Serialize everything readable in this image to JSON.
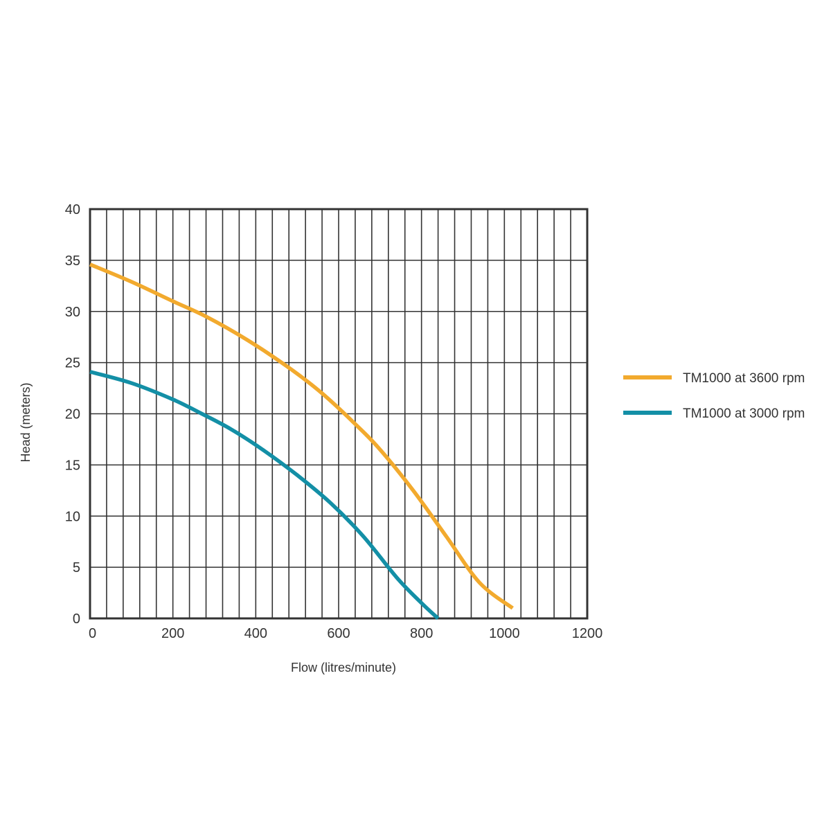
{
  "chart_data": {
    "type": "line",
    "title": "",
    "xlabel": "Flow (litres/minute)",
    "ylabel": "Head (meters)",
    "xlim": [
      0,
      1200
    ],
    "ylim": [
      0,
      40
    ],
    "x_ticks": [
      0,
      200,
      400,
      600,
      800,
      1000,
      1200
    ],
    "x_tick_labels": [
      "0",
      "200",
      "400",
      "600",
      "800",
      "1000",
      "1200"
    ],
    "y_ticks": [
      0,
      5,
      10,
      15,
      20,
      25,
      30,
      35,
      40
    ],
    "y_tick_labels": [
      "0",
      "5",
      "10",
      "15",
      "20",
      "25",
      "30",
      "35",
      "40"
    ],
    "x_grid_step": 40,
    "y_grid_step": 5,
    "grid": true,
    "legend_position": "right",
    "series": [
      {
        "name": "TM1000 at 3600 rpm",
        "color": "#F2AA2E",
        "x": [
          0,
          100,
          200,
          280,
          380,
          480,
          560,
          640,
          700,
          780,
          860,
          940,
          1020
        ],
        "y": [
          34.6,
          32.9,
          31.0,
          29.5,
          27.2,
          24.5,
          22.0,
          19.0,
          16.5,
          12.5,
          8.0,
          3.5,
          1.0
        ]
      },
      {
        "name": "TM1000 at 3000 rpm",
        "color": "#138FA6",
        "x": [
          0,
          100,
          200,
          260,
          340,
          420,
          500,
          580,
          660,
          740,
          800,
          840
        ],
        "y": [
          24.1,
          23.0,
          21.4,
          20.2,
          18.5,
          16.4,
          14.0,
          11.3,
          8.0,
          4.0,
          1.5,
          0.0
        ]
      }
    ]
  }
}
